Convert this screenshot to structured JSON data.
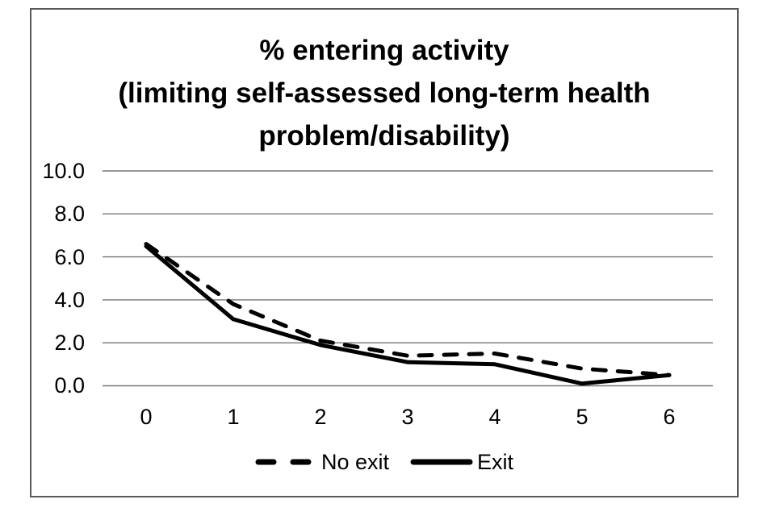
{
  "chart_data": {
    "type": "line",
    "title_lines": [
      "% entering activity",
      "(limiting self-assessed long-term health",
      "problem/disability)"
    ],
    "title_full": "% entering activity (limiting self-assessed long-term health problem/disability)",
    "categories": [
      "0",
      "1",
      "2",
      "3",
      "4",
      "5",
      "6"
    ],
    "series": [
      {
        "name": "No exit",
        "line_style": "dashed",
        "color": "#000000",
        "values": [
          6.6,
          3.8,
          2.1,
          1.4,
          1.5,
          0.8,
          0.5
        ]
      },
      {
        "name": "Exit",
        "line_style": "solid",
        "color": "#000000",
        "values": [
          6.5,
          3.1,
          1.9,
          1.1,
          1.0,
          0.1,
          0.5
        ]
      }
    ],
    "xlabel": "",
    "ylabel": "",
    "ylim": [
      0,
      10
    ],
    "ytick_step": 2,
    "ytick_labels": [
      "10.0",
      "8.0",
      "6.0",
      "4.0",
      "2.0",
      "0.0"
    ],
    "grid": "horizontal-only",
    "legend_position": "bottom",
    "colors": {
      "line": "#000000",
      "text": "#000000",
      "gridline": "#757575",
      "frame_border": "#595959",
      "background": "#ffffff"
    }
  }
}
